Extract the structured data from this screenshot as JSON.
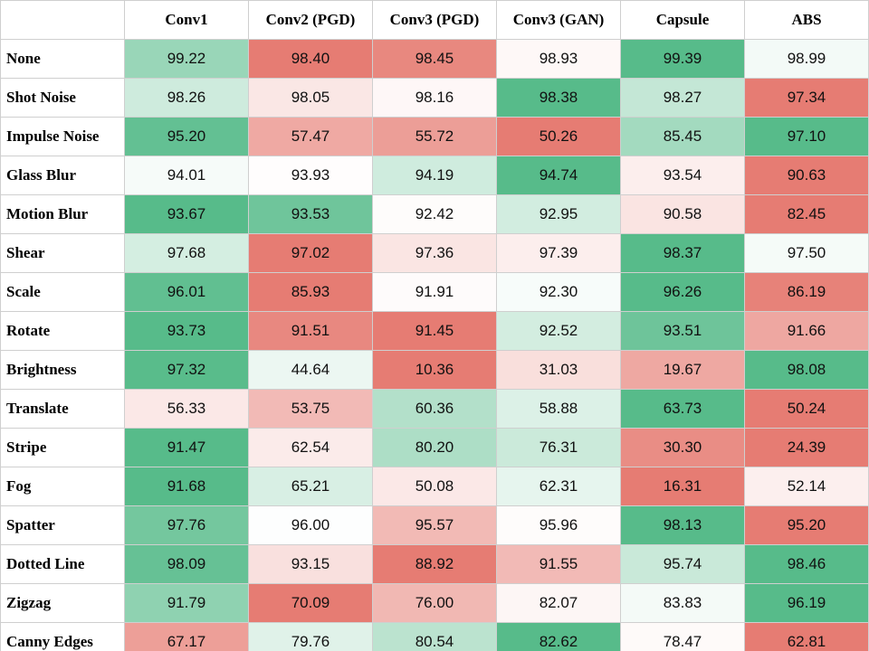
{
  "table": {
    "columns": [
      "Conv1",
      "Conv2 (PGD)",
      "Conv3 (PGD)",
      "Conv3 (GAN)",
      "Capsule",
      "ABS"
    ],
    "color_scale": {
      "low": "#e67c73",
      "mid": "#ffffff",
      "high": "#57bb8a",
      "scope": "row"
    },
    "rows": [
      [
        "None",
        "99.22",
        "98.40",
        "98.45",
        "98.93",
        "99.39",
        "98.99"
      ],
      [
        "Shot Noise",
        "98.26",
        "98.05",
        "98.16",
        "98.38",
        "98.27",
        "97.34"
      ],
      [
        "Impulse Noise",
        "95.20",
        "57.47",
        "55.72",
        "50.26",
        "85.45",
        "97.10"
      ],
      [
        "Glass Blur",
        "94.01",
        "93.93",
        "94.19",
        "94.74",
        "93.54",
        "90.63"
      ],
      [
        "Motion Blur",
        "93.67",
        "93.53",
        "92.42",
        "92.95",
        "90.58",
        "82.45"
      ],
      [
        "Shear",
        "97.68",
        "97.02",
        "97.36",
        "97.39",
        "98.37",
        "97.50"
      ],
      [
        "Scale",
        "96.01",
        "85.93",
        "91.91",
        "92.30",
        "96.26",
        "86.19"
      ],
      [
        "Rotate",
        "93.73",
        "91.51",
        "91.45",
        "92.52",
        "93.51",
        "91.66"
      ],
      [
        "Brightness",
        "97.32",
        "44.64",
        "10.36",
        "31.03",
        "19.67",
        "98.08"
      ],
      [
        "Translate",
        "56.33",
        "53.75",
        "60.36",
        "58.88",
        "63.73",
        "50.24"
      ],
      [
        "Stripe",
        "91.47",
        "62.54",
        "80.20",
        "76.31",
        "30.30",
        "24.39"
      ],
      [
        "Fog",
        "91.68",
        "65.21",
        "50.08",
        "62.31",
        "16.31",
        "52.14"
      ],
      [
        "Spatter",
        "97.76",
        "96.00",
        "95.57",
        "95.96",
        "98.13",
        "95.20"
      ],
      [
        "Dotted Line",
        "98.09",
        "93.15",
        "88.92",
        "91.55",
        "95.74",
        "98.46"
      ],
      [
        "Zigzag",
        "91.79",
        "70.09",
        "76.00",
        "82.07",
        "83.83",
        "96.19"
      ],
      [
        "Canny Edges",
        "67.17",
        "79.76",
        "80.54",
        "82.62",
        "78.47",
        "62.81"
      ]
    ]
  }
}
